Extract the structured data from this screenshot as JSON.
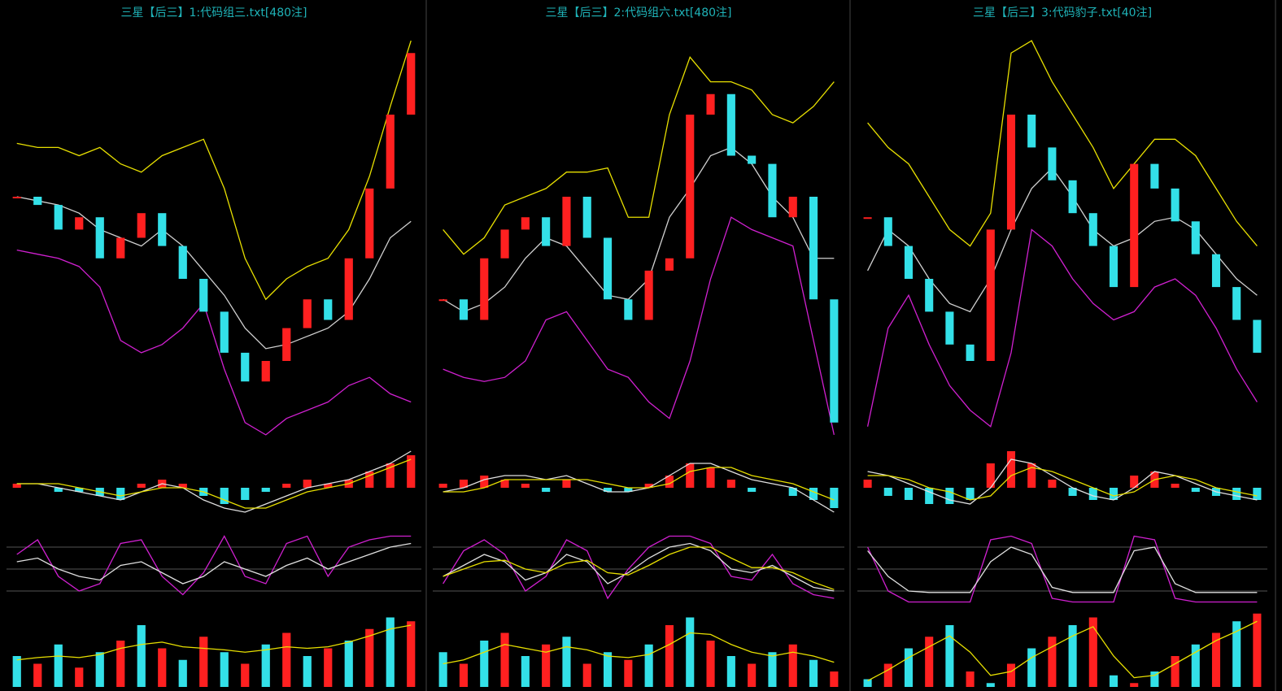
{
  "chart_data": [
    {
      "type": "candlestick",
      "title": "三星【后三】1:代码组三.txt[480注]",
      "up_color": "#ff2020",
      "down_color": "#33e0e8",
      "ylim": [
        0,
        100
      ],
      "price": [
        60,
        58,
        52,
        55,
        45,
        50,
        56,
        48,
        40,
        32,
        22,
        15,
        20,
        28,
        35,
        30,
        45,
        62,
        80,
        95
      ],
      "upper": [
        73,
        72,
        72,
        70,
        72,
        68,
        66,
        70,
        72,
        74,
        62,
        45,
        35,
        40,
        43,
        45,
        52,
        65,
        82,
        98
      ],
      "middle": [
        60,
        59,
        58,
        56,
        52,
        50,
        48,
        52,
        48,
        42,
        36,
        28,
        23,
        24,
        26,
        28,
        32,
        40,
        50,
        54
      ],
      "lower": [
        47,
        46,
        45,
        43,
        38,
        25,
        22,
        24,
        28,
        34,
        18,
        5,
        2,
        6,
        8,
        10,
        14,
        16,
        12,
        10
      ],
      "macd": {
        "ylim": [
          -10,
          10
        ],
        "hist": [
          1,
          0,
          -1,
          -1,
          -2,
          -3,
          1,
          2,
          1,
          -2,
          -4,
          -3,
          -1,
          1,
          2,
          1,
          2,
          4,
          6,
          8
        ],
        "dif": [
          1,
          1,
          0,
          -1,
          -2,
          -3,
          -1,
          1,
          0,
          -3,
          -5,
          -6,
          -4,
          -2,
          0,
          1,
          2,
          4,
          6,
          9
        ],
        "dea": [
          1,
          1,
          1,
          0,
          -1,
          -2,
          -1,
          0,
          0,
          -1,
          -3,
          -5,
          -5,
          -3,
          -1,
          0,
          1,
          3,
          5,
          7
        ]
      },
      "kdj": {
        "ylim": [
          0,
          100
        ],
        "levels": [
          20,
          50,
          80
        ],
        "k": [
          60,
          65,
          50,
          40,
          35,
          55,
          60,
          45,
          30,
          40,
          60,
          50,
          40,
          55,
          65,
          50,
          60,
          70,
          80,
          85
        ],
        "j": [
          70,
          90,
          40,
          20,
          30,
          85,
          90,
          40,
          15,
          45,
          95,
          40,
          30,
          85,
          95,
          40,
          80,
          90,
          95,
          95
        ]
      },
      "volume": {
        "ylim": [
          0,
          100
        ],
        "bars": [
          40,
          30,
          55,
          25,
          45,
          60,
          80,
          50,
          35,
          65,
          45,
          30,
          55,
          70,
          40,
          50,
          60,
          75,
          90,
          85
        ],
        "ma": [
          35,
          38,
          40,
          38,
          42,
          50,
          55,
          58,
          52,
          50,
          48,
          45,
          48,
          52,
          50,
          52,
          58,
          66,
          75,
          80
        ]
      }
    },
    {
      "type": "candlestick",
      "title": "三星【后三】2:代码组六.txt[480注]",
      "up_color": "#ff2020",
      "down_color": "#33e0e8",
      "ylim": [
        0,
        100
      ],
      "price": [
        35,
        30,
        45,
        52,
        55,
        48,
        60,
        50,
        35,
        30,
        42,
        45,
        80,
        85,
        70,
        68,
        55,
        60,
        35,
        5
      ],
      "upper": [
        52,
        46,
        50,
        58,
        60,
        62,
        66,
        66,
        67,
        55,
        55,
        80,
        94,
        88,
        88,
        86,
        80,
        78,
        82,
        88
      ],
      "middle": [
        35,
        32,
        34,
        38,
        45,
        50,
        48,
        42,
        36,
        35,
        40,
        55,
        62,
        70,
        72,
        68,
        60,
        55,
        45,
        45
      ],
      "lower": [
        18,
        16,
        15,
        16,
        20,
        30,
        32,
        25,
        18,
        16,
        10,
        6,
        20,
        40,
        55,
        52,
        50,
        48,
        25,
        2
      ],
      "macd": {
        "ylim": [
          -10,
          10
        ],
        "hist": [
          1,
          2,
          3,
          2,
          1,
          -1,
          2,
          0,
          -1,
          -1,
          1,
          3,
          6,
          5,
          2,
          -1,
          0,
          -2,
          -3,
          -5
        ],
        "dif": [
          -1,
          0,
          2,
          3,
          3,
          2,
          3,
          1,
          -1,
          -1,
          0,
          3,
          6,
          6,
          4,
          2,
          1,
          0,
          -3,
          -6
        ],
        "dea": [
          -1,
          -1,
          0,
          2,
          2,
          2,
          2,
          2,
          1,
          0,
          0,
          1,
          4,
          5,
          5,
          3,
          2,
          1,
          -1,
          -3
        ]
      },
      "kdj": {
        "ylim": [
          0,
          100
        ],
        "levels": [
          20,
          50,
          80
        ],
        "k": [
          40,
          55,
          70,
          60,
          35,
          45,
          70,
          60,
          30,
          45,
          65,
          80,
          85,
          75,
          50,
          45,
          55,
          40,
          25,
          20
        ],
        "j": [
          30,
          75,
          90,
          70,
          20,
          40,
          90,
          75,
          10,
          50,
          80,
          95,
          95,
          85,
          40,
          35,
          70,
          30,
          15,
          10
        ],
        "d": [
          40,
          50,
          60,
          62,
          50,
          45,
          58,
          62,
          45,
          42,
          55,
          70,
          80,
          80,
          65,
          52,
          52,
          45,
          32,
          22
        ]
      },
      "volume": {
        "ylim": [
          0,
          100
        ],
        "bars": [
          45,
          30,
          60,
          70,
          40,
          55,
          65,
          30,
          45,
          35,
          55,
          80,
          90,
          60,
          40,
          30,
          45,
          55,
          35,
          20
        ],
        "ma": [
          30,
          35,
          45,
          55,
          50,
          45,
          52,
          48,
          40,
          38,
          42,
          55,
          70,
          68,
          55,
          45,
          40,
          45,
          40,
          32
        ]
      }
    },
    {
      "type": "candlestick",
      "title": "三星【后三】3:代码豹子.txt[40注]",
      "up_color": "#ff2020",
      "down_color": "#33e0e8",
      "ylim": [
        0,
        100
      ],
      "price": [
        55,
        48,
        40,
        32,
        24,
        20,
        52,
        80,
        72,
        64,
        56,
        48,
        38,
        68,
        62,
        54,
        46,
        38,
        30,
        22
      ],
      "upper": [
        78,
        72,
        68,
        60,
        52,
        48,
        56,
        95,
        98,
        88,
        80,
        72,
        62,
        68,
        74,
        74,
        70,
        62,
        54,
        48
      ],
      "middle": [
        42,
        52,
        48,
        40,
        34,
        32,
        40,
        52,
        62,
        67,
        60,
        52,
        48,
        50,
        54,
        55,
        52,
        46,
        40,
        36
      ],
      "lower": [
        4,
        28,
        36,
        24,
        14,
        8,
        4,
        22,
        52,
        48,
        40,
        34,
        30,
        32,
        38,
        40,
        36,
        28,
        18,
        10
      ],
      "macd": {
        "ylim": [
          -10,
          10
        ],
        "hist": [
          2,
          -2,
          -3,
          -4,
          -4,
          -3,
          6,
          9,
          6,
          2,
          -2,
          -3,
          -3,
          3,
          4,
          1,
          -1,
          -2,
          -3,
          -3
        ],
        "dif": [
          4,
          3,
          1,
          -1,
          -3,
          -4,
          0,
          7,
          6,
          3,
          0,
          -2,
          -3,
          0,
          4,
          3,
          1,
          -1,
          -2,
          -3
        ],
        "dea": [
          3,
          3,
          2,
          0,
          -1,
          -3,
          -2,
          3,
          5,
          4,
          2,
          0,
          -2,
          -1,
          2,
          3,
          2,
          0,
          -1,
          -2
        ]
      },
      "kdj": {
        "ylim": [
          0,
          100
        ],
        "levels": [
          20,
          50,
          80
        ],
        "k": [
          75,
          40,
          20,
          18,
          18,
          18,
          60,
          80,
          70,
          25,
          18,
          18,
          18,
          75,
          80,
          30,
          18,
          18,
          18,
          18
        ],
        "j": [
          80,
          20,
          5,
          5,
          5,
          5,
          90,
          95,
          85,
          10,
          5,
          5,
          5,
          95,
          90,
          10,
          5,
          5,
          5,
          5
        ]
      },
      "volume": {
        "ylim": [
          0,
          100
        ],
        "bars": [
          10,
          30,
          50,
          65,
          80,
          20,
          5,
          30,
          50,
          65,
          80,
          90,
          15,
          5,
          20,
          40,
          55,
          70,
          85,
          95
        ],
        "ma": [
          8,
          22,
          38,
          52,
          66,
          45,
          15,
          20,
          38,
          52,
          66,
          78,
          40,
          12,
          15,
          30,
          45,
          60,
          72,
          85
        ]
      }
    }
  ]
}
